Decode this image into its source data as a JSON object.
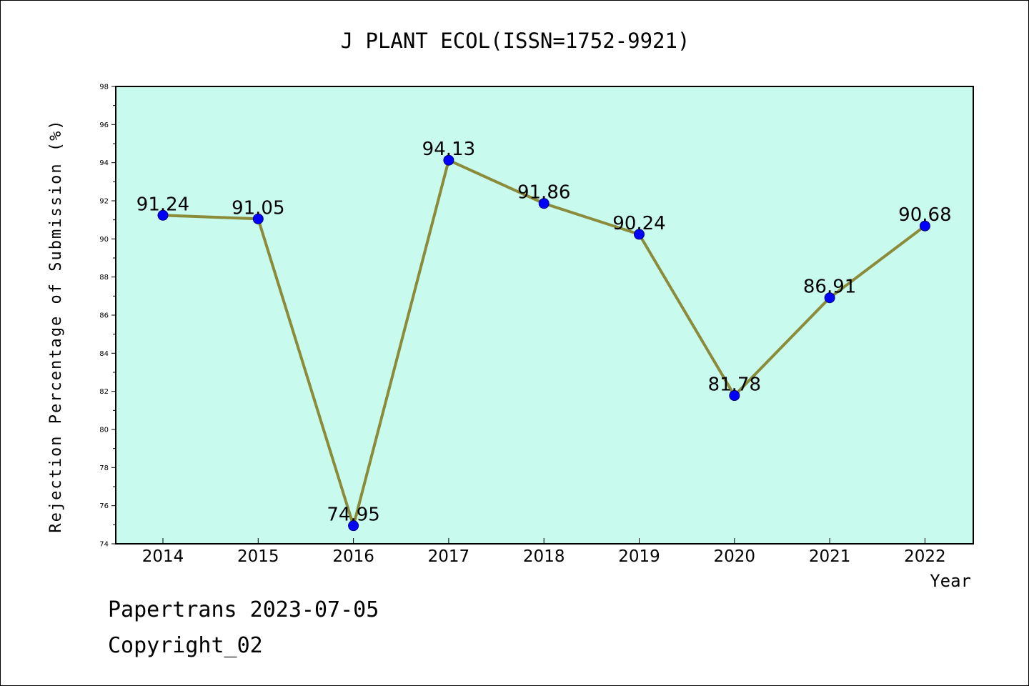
{
  "chart_data": {
    "type": "line",
    "title": "J PLANT ECOL(ISSN=1752-9921)",
    "xlabel": "Year",
    "ylabel": "Rejection Percentage of Submission (%)",
    "categories": [
      "2014",
      "2015",
      "2016",
      "2017",
      "2018",
      "2019",
      "2020",
      "2021",
      "2022"
    ],
    "values": [
      91.24,
      91.05,
      74.95,
      94.13,
      91.86,
      90.24,
      81.78,
      86.91,
      90.68
    ],
    "data_labels": [
      "91.24",
      "91.05",
      "74.95",
      "94.13",
      "91.86",
      "90.24",
      "81.78",
      "86.91",
      "90.68"
    ],
    "ylim": [
      74,
      98
    ],
    "yticks": [
      "74",
      "76",
      "78",
      "80",
      "82",
      "84",
      "86",
      "88",
      "90",
      "92",
      "94",
      "96",
      "98"
    ],
    "grid": false,
    "colors": {
      "plot_background": "#c8fbee",
      "line": "#8b8b3a",
      "marker": "#0000ff",
      "marker_edge": "#000080"
    }
  },
  "footer": {
    "line1": "Papertrans 2023-07-05",
    "line2": "Copyright_02"
  }
}
